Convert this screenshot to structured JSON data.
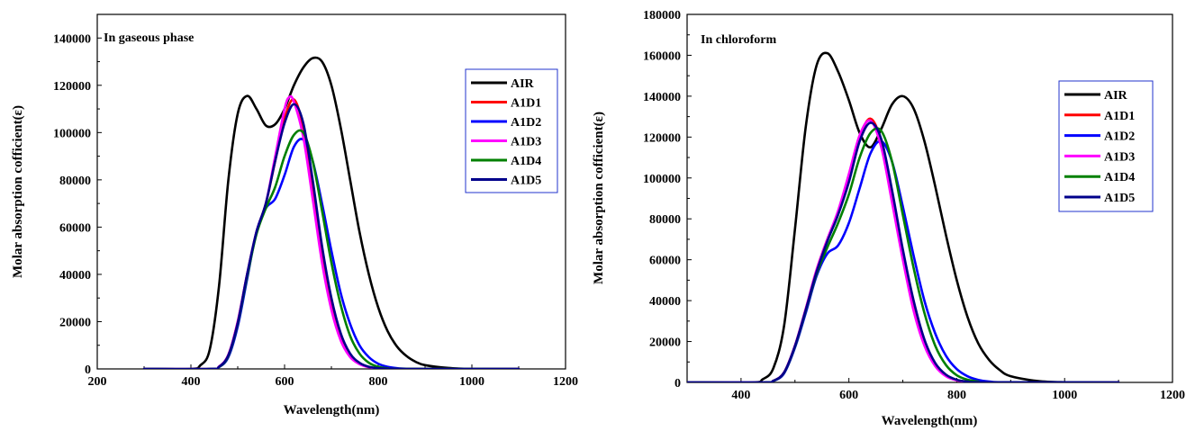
{
  "chart_data": [
    {
      "type": "line",
      "title": "In gaseous phase",
      "xlabel": "Wavelength(nm)",
      "ylabel": "Molar absorption cofficient(ε)",
      "xlim": [
        200,
        1200
      ],
      "ylim": [
        0,
        150000
      ],
      "xticks": [
        "200",
        "400",
        "600",
        "800",
        "1000",
        "1200"
      ],
      "yticks": [
        "0",
        "20000",
        "40000",
        "60000",
        "80000",
        "100000",
        "120000",
        "140000"
      ],
      "legend_position": "right",
      "series": [
        {
          "name": "AIR",
          "color": "#000000",
          "x": [
            300,
            400,
            420,
            440,
            460,
            480,
            500,
            520,
            540,
            560,
            580,
            600,
            620,
            640,
            660,
            680,
            700,
            720,
            740,
            760,
            780,
            800,
            820,
            840,
            860,
            880,
            900,
            950,
            1000,
            1100
          ],
          "y": [
            0,
            0,
            1500,
            8000,
            35000,
            80000,
            108000,
            115500,
            110000,
            103000,
            103500,
            110000,
            120000,
            127500,
            131500,
            130000,
            120000,
            102000,
            80000,
            58000,
            40000,
            26000,
            16000,
            9500,
            5500,
            3000,
            1600,
            400,
            50,
            0
          ]
        },
        {
          "name": "A1D1",
          "color": "#ff0000",
          "x": [
            300,
            440,
            460,
            480,
            500,
            520,
            540,
            560,
            580,
            600,
            620,
            640,
            660,
            680,
            700,
            720,
            740,
            760,
            780,
            800,
            820,
            850,
            1100
          ],
          "y": [
            0,
            0,
            1000,
            6000,
            20000,
            40000,
            58000,
            70000,
            88000,
            106000,
            114000,
            102000,
            75000,
            47000,
            26000,
            12500,
            5500,
            2200,
            800,
            250,
            60,
            0,
            0
          ]
        },
        {
          "name": "A1D2",
          "color": "#0000ff",
          "x": [
            300,
            440,
            460,
            480,
            500,
            520,
            540,
            560,
            580,
            600,
            620,
            640,
            660,
            680,
            700,
            720,
            740,
            760,
            780,
            800,
            820,
            840,
            860,
            900,
            1100
          ],
          "y": [
            0,
            0,
            800,
            5000,
            18000,
            38000,
            58000,
            68000,
            72000,
            82000,
            94000,
            97000,
            88000,
            70000,
            50000,
            32000,
            19000,
            10000,
            5000,
            2200,
            900,
            300,
            80,
            0,
            0
          ]
        },
        {
          "name": "A1D3",
          "color": "#ff00ff",
          "x": [
            300,
            440,
            460,
            480,
            500,
            520,
            540,
            560,
            580,
            600,
            610,
            620,
            640,
            660,
            680,
            700,
            720,
            740,
            760,
            780,
            800,
            820,
            850,
            1100
          ],
          "y": [
            0,
            0,
            1000,
            6000,
            20000,
            40000,
            58000,
            70000,
            90000,
            110000,
            115000,
            113000,
            98000,
            72000,
            45000,
            25000,
            12000,
            5000,
            2000,
            700,
            200,
            50,
            0,
            0
          ]
        },
        {
          "name": "A1D4",
          "color": "#008000",
          "x": [
            300,
            440,
            460,
            480,
            500,
            520,
            540,
            560,
            580,
            600,
            620,
            640,
            660,
            680,
            700,
            720,
            740,
            760,
            780,
            800,
            820,
            850,
            1100
          ],
          "y": [
            0,
            0,
            800,
            5500,
            19000,
            39000,
            57000,
            68000,
            77000,
            90000,
            99000,
            100000,
            88000,
            67000,
            45000,
            27000,
            14000,
            6500,
            2600,
            900,
            250,
            50,
            0
          ]
        },
        {
          "name": "A1D5",
          "color": "#00008b",
          "x": [
            300,
            440,
            460,
            480,
            500,
            520,
            540,
            560,
            580,
            600,
            620,
            640,
            660,
            680,
            700,
            720,
            740,
            760,
            780,
            800,
            820,
            850,
            1100
          ],
          "y": [
            0,
            0,
            900,
            5800,
            19500,
            40000,
            58000,
            70000,
            88000,
            104000,
            112000,
            104000,
            80000,
            52000,
            30000,
            15000,
            6500,
            2600,
            900,
            300,
            80,
            0,
            0
          ]
        }
      ]
    },
    {
      "type": "line",
      "title": "In chloroform",
      "xlabel": "Wavelength(nm)",
      "ylabel": "Molar absorption cofficient(ε)",
      "xlim": [
        300,
        1200
      ],
      "ylim": [
        0,
        180000
      ],
      "xticks": [
        "400",
        "600",
        "800",
        "1000",
        "1200"
      ],
      "yticks": [
        "0",
        "20000",
        "40000",
        "60000",
        "80000",
        "100000",
        "120000",
        "140000",
        "160000",
        "180000"
      ],
      "legend_position": "right",
      "series": [
        {
          "name": "AIR",
          "color": "#000000",
          "x": [
            300,
            420,
            440,
            460,
            480,
            500,
            520,
            540,
            560,
            580,
            600,
            620,
            640,
            660,
            680,
            700,
            720,
            740,
            760,
            780,
            800,
            820,
            840,
            860,
            880,
            900,
            950,
            1000,
            1100
          ],
          "y": [
            0,
            0,
            1500,
            7000,
            28000,
            75000,
            125000,
            155000,
            161000,
            152000,
            138000,
            122000,
            115000,
            124000,
            136000,
            140000,
            134000,
            118000,
            96000,
            72000,
            50000,
            32000,
            19000,
            11000,
            6000,
            3000,
            700,
            100,
            0
          ]
        },
        {
          "name": "A1D1",
          "color": "#ff0000",
          "x": [
            300,
            440,
            460,
            480,
            500,
            520,
            540,
            560,
            580,
            600,
            620,
            640,
            660,
            680,
            700,
            720,
            740,
            760,
            780,
            800,
            820,
            850,
            1100
          ],
          "y": [
            0,
            0,
            800,
            5000,
            18000,
            36000,
            55000,
            70000,
            83000,
            100000,
            120000,
            129000,
            118000,
            92000,
            63000,
            38000,
            20000,
            9000,
            3500,
            1200,
            350,
            50,
            0
          ]
        },
        {
          "name": "A1D2",
          "color": "#0000ff",
          "x": [
            300,
            440,
            460,
            480,
            500,
            520,
            540,
            560,
            580,
            600,
            620,
            640,
            660,
            680,
            700,
            720,
            740,
            760,
            780,
            800,
            820,
            840,
            860,
            900,
            1100
          ],
          "y": [
            0,
            0,
            700,
            4500,
            17000,
            34000,
            52000,
            63000,
            67000,
            78000,
            95000,
            112000,
            118000,
            108000,
            86000,
            62000,
            40000,
            24000,
            13000,
            6500,
            3000,
            1200,
            400,
            0,
            0
          ]
        },
        {
          "name": "A1D3",
          "color": "#ff00ff",
          "x": [
            300,
            440,
            460,
            480,
            500,
            520,
            540,
            560,
            580,
            600,
            620,
            640,
            660,
            680,
            700,
            720,
            740,
            760,
            780,
            800,
            820,
            850,
            1100
          ],
          "y": [
            0,
            0,
            800,
            5000,
            18000,
            36000,
            55000,
            70000,
            84000,
            102000,
            121000,
            128000,
            115000,
            88000,
            60000,
            35000,
            18000,
            8000,
            3000,
            1000,
            300,
            40,
            0
          ]
        },
        {
          "name": "A1D4",
          "color": "#008000",
          "x": [
            300,
            440,
            460,
            480,
            500,
            520,
            540,
            560,
            580,
            600,
            620,
            640,
            660,
            680,
            700,
            720,
            740,
            760,
            780,
            800,
            820,
            840,
            860,
            1100
          ],
          "y": [
            0,
            0,
            750,
            4800,
            17500,
            35000,
            53000,
            66000,
            78000,
            92000,
            110000,
            122000,
            123000,
            108000,
            82000,
            56000,
            34000,
            18000,
            8500,
            3500,
            1300,
            400,
            100,
            0
          ]
        },
        {
          "name": "A1D5",
          "color": "#00008b",
          "x": [
            300,
            440,
            460,
            480,
            500,
            520,
            540,
            560,
            580,
            600,
            620,
            640,
            660,
            680,
            700,
            720,
            740,
            760,
            780,
            800,
            820,
            850,
            1100
          ],
          "y": [
            0,
            0,
            780,
            4900,
            17800,
            35500,
            54000,
            69000,
            82000,
            98000,
            118000,
            127000,
            119000,
            94000,
            65000,
            40000,
            21000,
            9500,
            3800,
            1300,
            400,
            60,
            0
          ]
        }
      ]
    }
  ]
}
